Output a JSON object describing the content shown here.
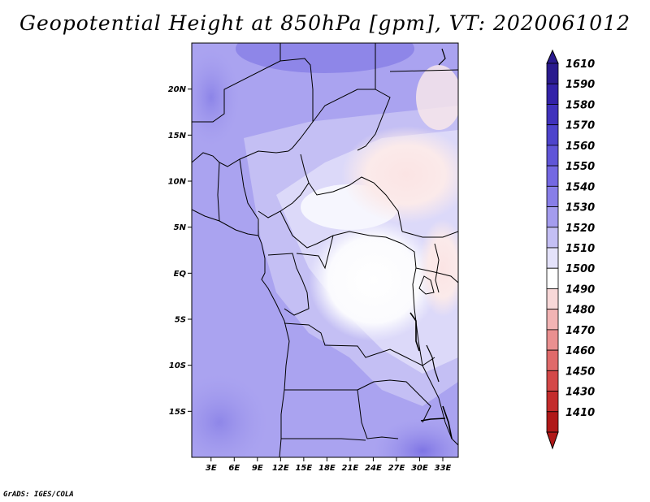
{
  "title": "Geopotential Height at 850hPa [gpm], VT: 2020061012",
  "credit": "GrADS: IGES/COLA",
  "map": {
    "lat_ticks": [
      {
        "label": "20N",
        "lat": 20
      },
      {
        "label": "15N",
        "lat": 15
      },
      {
        "label": "10N",
        "lat": 10
      },
      {
        "label": "5N",
        "lat": 5
      },
      {
        "label": "EQ",
        "lat": 0
      },
      {
        "label": "5S",
        "lat": -5
      },
      {
        "label": "10S",
        "lat": -10
      },
      {
        "label": "15S",
        "lat": -15
      }
    ],
    "lon_ticks": [
      {
        "label": "3E",
        "lon": 3
      },
      {
        "label": "6E",
        "lon": 6
      },
      {
        "label": "9E",
        "lon": 9
      },
      {
        "label": "12E",
        "lon": 12
      },
      {
        "label": "15E",
        "lon": 15
      },
      {
        "label": "18E",
        "lon": 18
      },
      {
        "label": "21E",
        "lon": 21
      },
      {
        "label": "24E",
        "lon": 24
      },
      {
        "label": "27E",
        "lon": 27
      },
      {
        "label": "30E",
        "lon": 30
      },
      {
        "label": "33E",
        "lon": 33
      }
    ],
    "lon_range": [
      0.5,
      35
    ],
    "lat_range": [
      -20,
      25
    ]
  },
  "colorbar": {
    "levels": [
      "1610",
      "1590",
      "1580",
      "1570",
      "1560",
      "1550",
      "1540",
      "1530",
      "1520",
      "1510",
      "1500",
      "1490",
      "1480",
      "1470",
      "1460",
      "1450",
      "1430",
      "1410"
    ],
    "colors": [
      "#2a1a8e",
      "#3322a8",
      "#4032bc",
      "#4e44cc",
      "#6055d8",
      "#7468e2",
      "#887ee8",
      "#a49cee",
      "#c4bff4",
      "#e4e2fa",
      "#ffffff",
      "#f8d8d8",
      "#f2b4b4",
      "#ea9090",
      "#e06a6a",
      "#d44848",
      "#c42c2c",
      "#b01818"
    ]
  }
}
